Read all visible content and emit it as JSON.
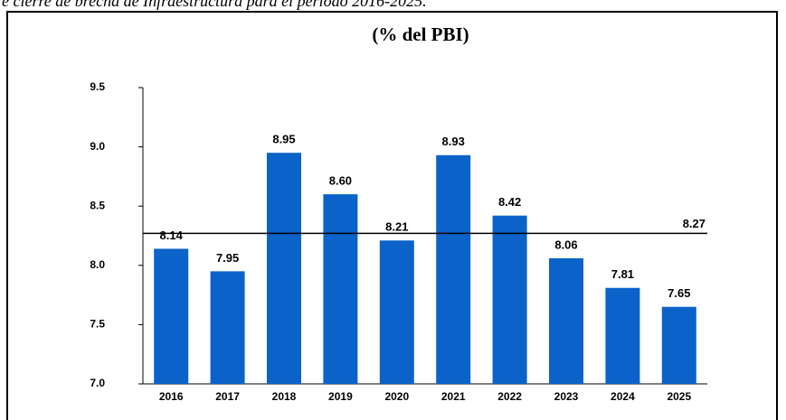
{
  "caption": "e cierre de brecha de Infraestructura para el período 2016-2025.",
  "chart_data": {
    "type": "bar",
    "title": "(% del PBI)",
    "categories": [
      "2016",
      "2017",
      "2018",
      "2019",
      "2020",
      "2021",
      "2022",
      "2023",
      "2024",
      "2025"
    ],
    "values": [
      8.14,
      7.95,
      8.95,
      8.6,
      8.21,
      8.93,
      8.42,
      8.06,
      7.81,
      7.65
    ],
    "value_labels": [
      "8.14",
      "7.95",
      "8.95",
      "8.60",
      "8.21",
      "8.93",
      "8.42",
      "8.06",
      "7.81",
      "7.65"
    ],
    "color": "#0b63c9",
    "ylim": [
      7,
      9.5
    ],
    "yticks": [
      {
        "value": 7,
        "label": "7.0"
      },
      7.5,
      {
        "value": 8,
        "label": "8.0"
      },
      8.5,
      {
        "value": 9,
        "label": "9.0"
      },
      9.5
    ],
    "reference_line": 8.27
  }
}
